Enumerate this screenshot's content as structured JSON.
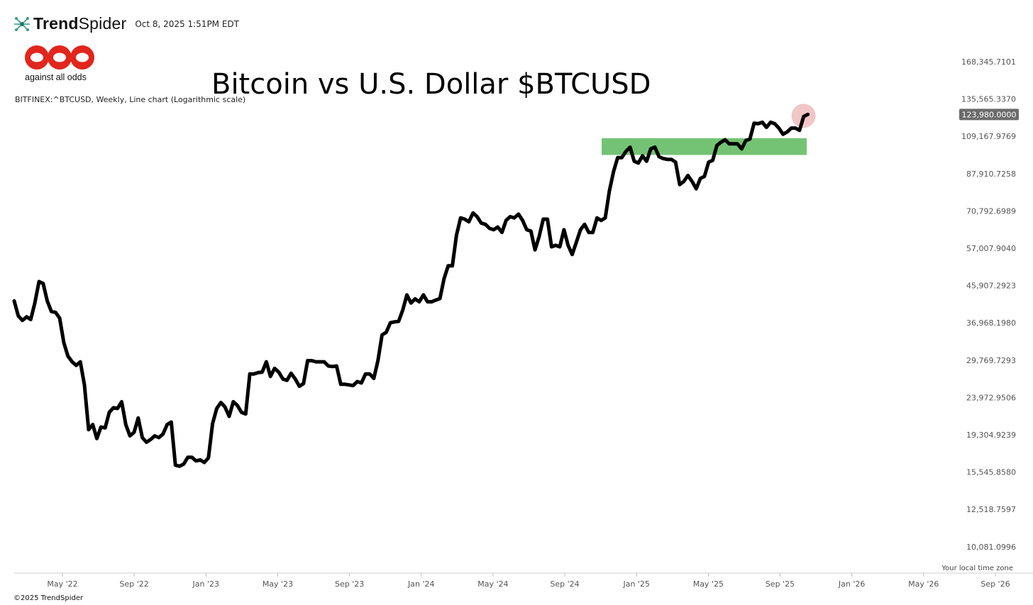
{
  "header": {
    "brand_bold": "Trend",
    "brand_light": "Spider",
    "timestamp": "Oct 8, 2025 1:51PM EDT"
  },
  "logo": {
    "text": "against all odds",
    "color": "#e1261c"
  },
  "title": "Bitcoin vs U.S. Dollar $BTCUSD",
  "symbol_description": "BITFINEX:^BTCUSD, Weekly, Line chart (Logarithmic scale)",
  "footer": {
    "copyright": "©2025 TrendSpider",
    "timezone": "Your local time zone"
  },
  "colors": {
    "line": "#000000",
    "zone": "#5cb85c",
    "marker": "#e8a0a0",
    "badge": "#6b6b6b"
  },
  "chart_data": {
    "type": "line",
    "scale": "log",
    "series": [
      {
        "values": [
          42000,
          38500,
          37500,
          38300,
          37700,
          41500,
          47000,
          46500,
          42000,
          39500,
          39300,
          38000,
          33000,
          30500,
          29500,
          28900,
          29500,
          25800,
          19900,
          20500,
          18900,
          20200,
          20100,
          22000,
          22600,
          22500,
          23400,
          20500,
          19200,
          19600,
          21300,
          19000,
          18500,
          18800,
          19200,
          19000,
          19400,
          20500,
          20800,
          16200,
          16100,
          16300,
          16950,
          16950,
          16600,
          16700,
          16450,
          16900,
          20600,
          22500,
          23300,
          22700,
          21500,
          23400,
          22900,
          22000,
          21800,
          27500,
          27500,
          27700,
          27800,
          29500,
          27100,
          28400,
          27800,
          26700,
          26500,
          27600,
          26700,
          25600,
          26000,
          29700,
          29700,
          29500,
          29500,
          29500,
          28800,
          28700,
          28800,
          25900,
          25900,
          25800,
          25700,
          26300,
          26100,
          27500,
          27500,
          26800,
          29700,
          34500,
          35000,
          37000,
          37200,
          37300,
          39800,
          43500,
          41500,
          42500,
          41800,
          43500,
          41800,
          41800,
          42200,
          42600,
          47800,
          51500,
          51500,
          61500,
          68000,
          67500,
          66500,
          70000,
          68500,
          66000,
          65500,
          64000,
          63500,
          64500,
          62500,
          67000,
          68500,
          68000,
          69500,
          67000,
          63500,
          63000,
          56500,
          61000,
          67500,
          67500,
          57500,
          58000,
          57500,
          63500,
          58000,
          55000,
          59000,
          63500,
          65500,
          62500,
          62500,
          68000,
          67000,
          68000,
          79500,
          89000,
          96500,
          96500,
          100000,
          102500,
          94500,
          93500,
          97500,
          94500,
          101500,
          102500,
          97000,
          96000,
          95500,
          95500,
          94000,
          82500,
          84000,
          87000,
          84000,
          80500,
          85500,
          86500,
          94000,
          95000,
          103500,
          105500,
          107000,
          104500,
          104500,
          104500,
          101500,
          106500,
          107500,
          117800,
          117500,
          118500,
          115000,
          118500,
          117500,
          114500,
          110500,
          112000,
          114500,
          114500,
          113000,
          122500,
          123980
        ]
      }
    ],
    "x_ticks": [
      "May '22",
      "Sep '22",
      "Jan '23",
      "May '23",
      "Sep '23",
      "Jan '24",
      "May '24",
      "Sep '24",
      "Jan '25",
      "May '25",
      "Sep '25",
      "Jan '26",
      "May '26",
      "Sep '26"
    ],
    "y_ticks": [
      "168,345.7101",
      "135,565.3370",
      "109,167.9769",
      "87,910.7258",
      "70,792.6989",
      "57,007.9040",
      "45,907.2923",
      "36,968.1980",
      "29,769.7293",
      "23,972.9506",
      "19,304.9239",
      "15,545.8580",
      "12,518.7597",
      "10,081.0996"
    ],
    "last_price_label": "123,980.0000",
    "last_price": 123980,
    "ylim": [
      9600,
      180000
    ],
    "resistance_zone": {
      "low": 98000,
      "high": 108000
    },
    "legend": "none",
    "grid": false
  }
}
